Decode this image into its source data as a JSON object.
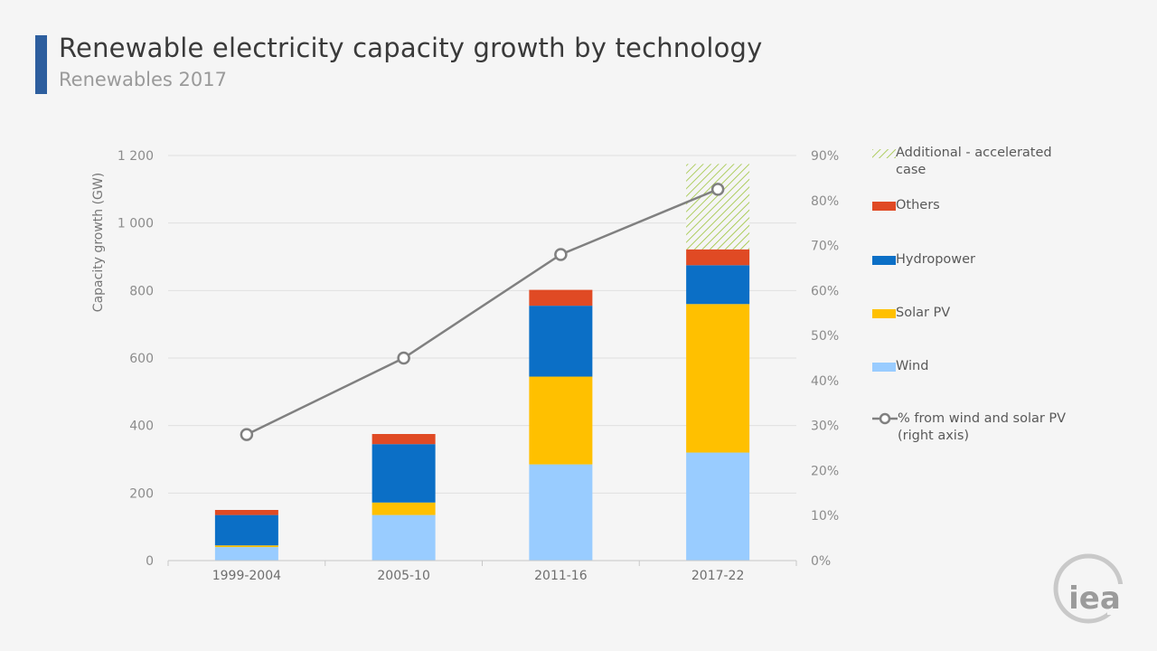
{
  "title": "Renewable electricity capacity growth by technology",
  "subtitle": "Renewables 2017",
  "colors": {
    "wind": "#99ccff",
    "solar": "#ffc000",
    "hydro": "#0b6fc6",
    "others": "#e04a24",
    "additional": "#9dc43b",
    "line": "#808080",
    "grid": "#e0e0e0",
    "axis_text": "#8c8c8c",
    "brand": "#2d5e9e"
  },
  "chart_data": {
    "type": "bar",
    "stacked": true,
    "title": "Renewable electricity capacity growth by technology",
    "ylabel": "Capacity growth (GW)",
    "ylim": [
      0,
      1200
    ],
    "y_ticks": [
      0,
      200,
      400,
      600,
      800,
      1000,
      1200
    ],
    "y_tick_labels": [
      "0",
      "200",
      "400",
      "600",
      "800",
      "1 000",
      "1 200"
    ],
    "y2lim": [
      0,
      90
    ],
    "y2_ticks": [
      0,
      10,
      20,
      30,
      40,
      50,
      60,
      70,
      80,
      90
    ],
    "y2_tick_labels": [
      "0%",
      "10%",
      "20%",
      "30%",
      "40%",
      "50%",
      "60%",
      "70%",
      "80%",
      "90%"
    ],
    "categories": [
      "1999-2004",
      "2005-10",
      "2011-16",
      "2017-22"
    ],
    "series": [
      {
        "name": "Wind",
        "key": "wind",
        "values": [
          40,
          135,
          285,
          320
        ]
      },
      {
        "name": "Solar PV",
        "key": "solar",
        "values": [
          5,
          37,
          260,
          440
        ]
      },
      {
        "name": "Hydropower",
        "key": "hydro",
        "values": [
          90,
          173,
          210,
          115
        ]
      },
      {
        "name": "Others",
        "key": "others",
        "values": [
          15,
          30,
          47,
          47
        ]
      },
      {
        "name": "Additional - accelerated case",
        "key": "additional",
        "values": [
          0,
          0,
          0,
          253
        ]
      }
    ],
    "line_series": {
      "name": "%  from wind and solar PV (right axis)",
      "axis": "right",
      "values": [
        28,
        45,
        68,
        82.5
      ]
    },
    "grid": true,
    "legend_position": "right"
  },
  "legend": [
    {
      "key": "additional",
      "label": "Additional - accelerated case",
      "kind": "hatch"
    },
    {
      "key": "others",
      "label": "Others",
      "kind": "box"
    },
    {
      "key": "hydro",
      "label": "Hydropower",
      "kind": "box"
    },
    {
      "key": "solar",
      "label": "Solar PV",
      "kind": "box"
    },
    {
      "key": "wind",
      "label": "Wind",
      "kind": "box"
    },
    {
      "key": "line",
      "label": "%  from wind and solar PV (right axis)",
      "kind": "line"
    }
  ],
  "logo": {
    "text": "iea"
  }
}
